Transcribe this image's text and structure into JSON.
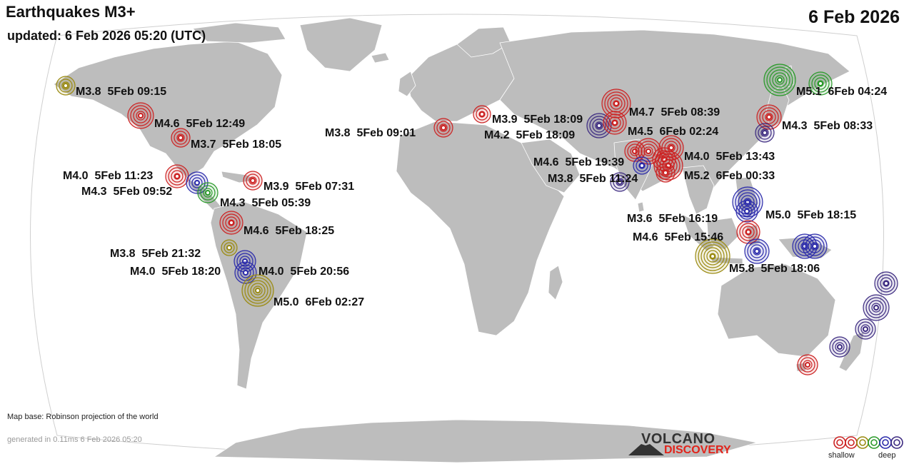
{
  "header": {
    "title": "Earthquakes M3+",
    "updated": "updated:  6 Feb 2026 05:20 (UTC)",
    "date": "6 Feb 2026"
  },
  "footer": {
    "map_base": "Map base: Robinson projection of the world",
    "generated": "generated in 0.11ms  6 Feb 2026 05:20",
    "logo_top": "VOLCANO",
    "logo_bottom": "DISCOVERY",
    "legend_shallow": "shallow",
    "legend_deep": "deep"
  },
  "colors": {
    "ocean": "#ffffff",
    "land": "#bdbdbd",
    "red": "#cc2222",
    "olive": "#9a8a10",
    "green": "#2a9a2a",
    "blue": "#2a2aaa",
    "purple": "#3c2a80",
    "brand_red": "#e2231a"
  },
  "labels": [
    "M3.8  5Feb 09:15",
    "M4.6  5Feb 12:49",
    "M3.7  5Feb 18:05",
    "M4.0  5Feb 11:23",
    "M4.3  5Feb 09:52",
    "M3.9  5Feb 07:31",
    "M4.3  5Feb 05:39",
    "M4.6  5Feb 18:25",
    "M3.8  5Feb 21:32",
    "M4.0  5Feb 18:20",
    "M4.0  5Feb 20:56",
    "M5.0  6Feb 02:27",
    "M3.8  5Feb 09:01",
    "M3.9  5Feb 18:09",
    "M4.2  5Feb 18:09",
    "M4.7  5Feb 08:39",
    "M4.5  6Feb 02:24",
    "M4.0  5Feb 13:43",
    "M4.6  5Feb 19:39",
    "M3.8  5Feb 11:24",
    "M5.2  6Feb 00:33",
    "M5.1  6Feb 04:24",
    "M4.3  5Feb 08:33",
    "M3.6  5Feb 16:19",
    "M5.0  5Feb 18:15",
    "M4.6  5Feb 15:46",
    "M5.8  5Feb 18:06"
  ]
}
